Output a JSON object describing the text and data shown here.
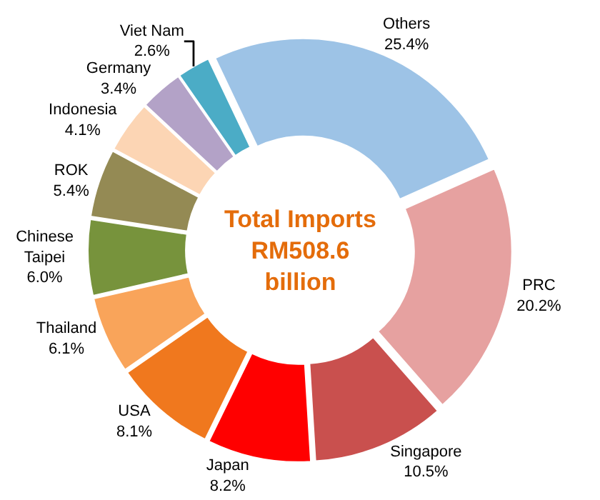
{
  "chart_data": {
    "type": "donut",
    "title": "Total Imports RM508.6 billion",
    "categories": [
      "PRC",
      "Singapore",
      "Japan",
      "USA",
      "Thailand",
      "Chinese Taipei",
      "ROK",
      "Indonesia",
      "Germany",
      "Viet Nam",
      "Others"
    ],
    "values": [
      20.2,
      10.5,
      8.2,
      8.1,
      6.1,
      6.0,
      5.4,
      4.1,
      3.4,
      2.6,
      25.4
    ],
    "value_labels": [
      "20.2%",
      "10.5%",
      "8.2%",
      "8.1%",
      "6.1%",
      "6.0%",
      "5.4%",
      "4.1%",
      "3.4%",
      "2.6%",
      "25.4%"
    ],
    "colors": [
      "#e6a1a0",
      "#c9504e",
      "#ff0000",
      "#f0781e",
      "#f9a45a",
      "#77933c",
      "#948a54",
      "#fcd5b4",
      "#b3a2c7",
      "#4bacc6",
      "#9dc3e6"
    ],
    "legend": false
  }
}
